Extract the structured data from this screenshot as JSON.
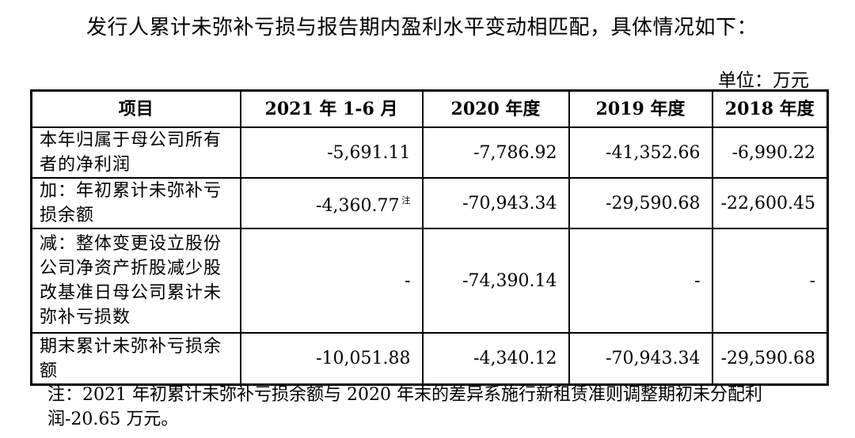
{
  "intro": "发行人累计未弥补亏损与报告期内盈利水平变动相匹配，具体情况如下：",
  "unit": "单位：万元",
  "table": {
    "headers": [
      "项目",
      "2021 年 1-6 月",
      "2020 年度",
      "2019 年度",
      "2018 年度"
    ],
    "rows": [
      {
        "label": "本年归属于母公司所有者的净利润",
        "values": [
          "-5,691.11",
          "-7,786.92",
          "-41,352.66",
          "-6,990.22"
        ]
      },
      {
        "label": "加：年初累计未弥补亏损余额",
        "values": [
          "-4,360.77",
          "-70,943.34",
          "-29,590.68",
          "-22,600.45"
        ],
        "footnote_mark": "注"
      },
      {
        "label": "减：整体变更设立股份公司净资产折股减少股改基准日母公司累计未弥补亏损数",
        "values": [
          "-",
          "-74,390.14",
          "-",
          "-"
        ]
      },
      {
        "label": "期末累计未弥补亏损余额",
        "values": [
          "-10,051.88",
          "-4,340.12",
          "-70,943.34",
          "-29,590.68"
        ]
      }
    ]
  },
  "note": "注：2021 年初累计未弥补亏损余额与 2020 年末的差异系施行新租赁准则调整期初未分配利润-20.65 万元。"
}
